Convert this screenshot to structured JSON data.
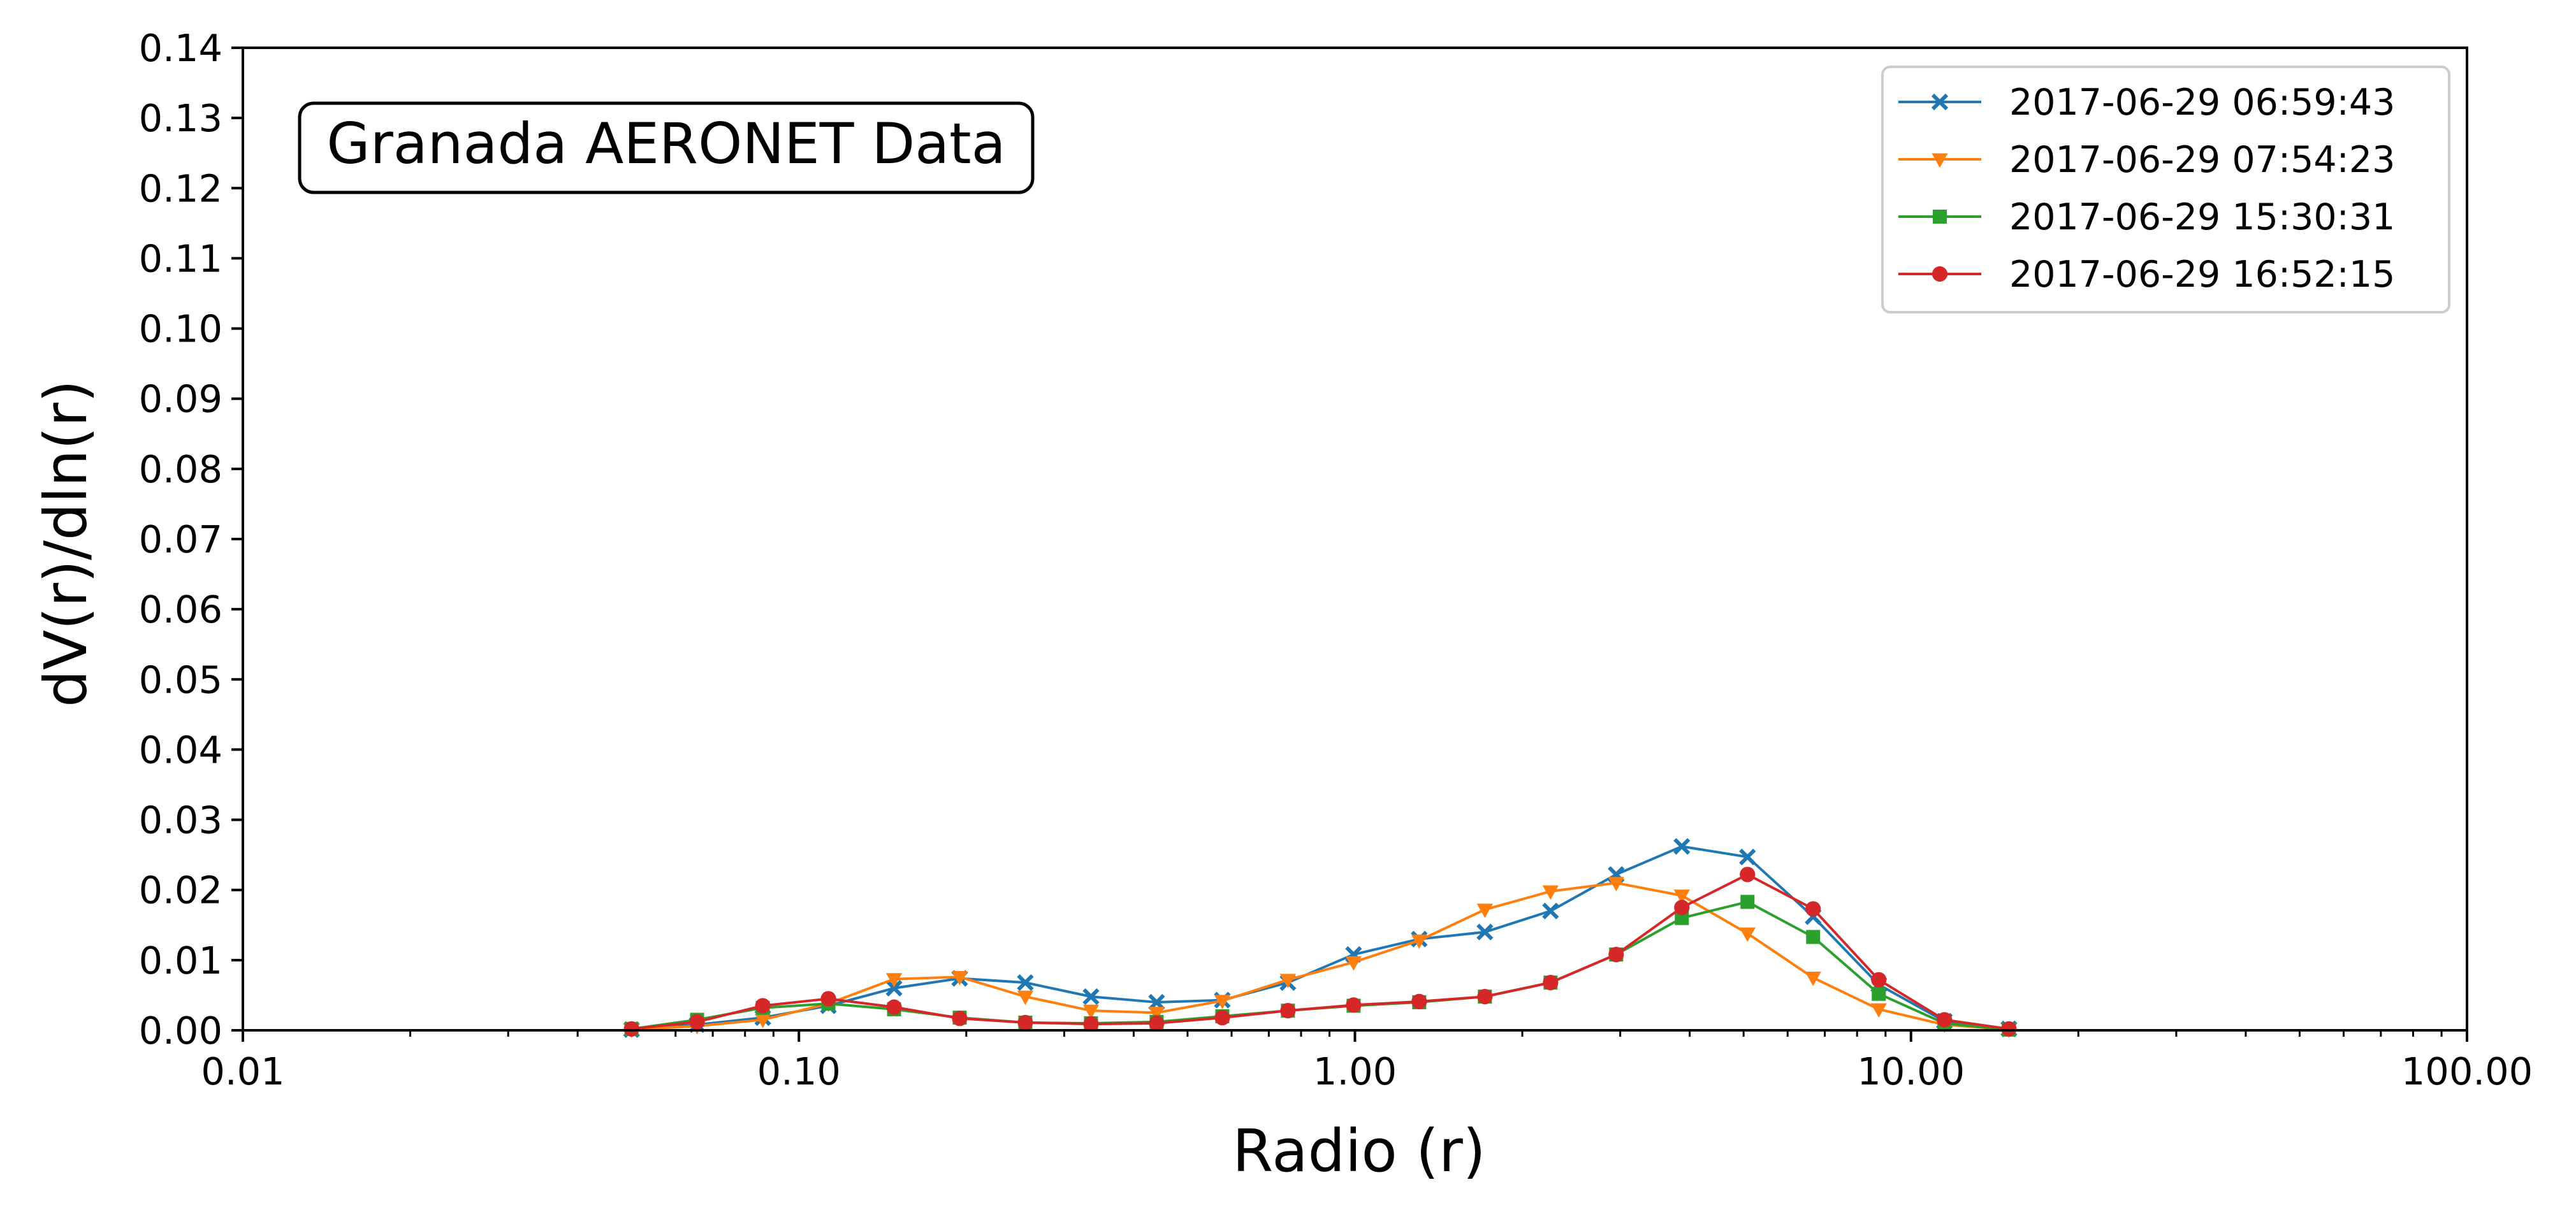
{
  "chart_data": {
    "type": "line",
    "title": "",
    "annotation": "Granada AERONET Data",
    "xlabel": "Radio (r)",
    "ylabel": "dV(r)/dln(r)",
    "xscale": "log",
    "xlim": [
      0.01,
      100
    ],
    "ylim": [
      0,
      0.14
    ],
    "xticks": [
      0.01,
      0.1,
      1,
      10,
      100
    ],
    "xtick_labels": [
      "0.01",
      "0.10",
      "1.00",
      "10.00",
      "100.00"
    ],
    "yticks": [
      0,
      0.01,
      0.02,
      0.03,
      0.04,
      0.05,
      0.06,
      0.07,
      0.08,
      0.09,
      0.1,
      0.11,
      0.12,
      0.13,
      0.14
    ],
    "ytick_labels": [
      "0.00",
      "0.01",
      "0.02",
      "0.03",
      "0.04",
      "0.05",
      "0.06",
      "0.07",
      "0.08",
      "0.09",
      "0.10",
      "0.11",
      "0.12",
      "0.13",
      "0.14"
    ],
    "grid": false,
    "legend_position": "top-right",
    "x": [
      0.05,
      0.0656,
      0.0861,
      0.113,
      0.1483,
      0.1946,
      0.2554,
      0.3352,
      0.4399,
      0.5774,
      0.7577,
      0.9944,
      1.305,
      1.7128,
      2.2479,
      2.9501,
      3.8717,
      5.0813,
      6.6686,
      8.7518,
      11.486,
      15.0
    ],
    "series": [
      {
        "name": "2017-06-29 06:59:43",
        "color": "#1f77b4",
        "marker": "x",
        "values": [
          0.0001,
          0.0008,
          0.0018,
          0.0035,
          0.006,
          0.0074,
          0.0068,
          0.0048,
          0.004,
          0.0043,
          0.0068,
          0.0108,
          0.013,
          0.014,
          0.017,
          0.0222,
          0.0262,
          0.0247,
          0.0162,
          0.0065,
          0.0013,
          0.0002
        ]
      },
      {
        "name": "2017-06-29 07:54:23",
        "color": "#ff7f0e",
        "marker": "triangle-down",
        "values": [
          0.0001,
          0.0006,
          0.0015,
          0.0038,
          0.0073,
          0.0076,
          0.0048,
          0.0028,
          0.0025,
          0.0042,
          0.0072,
          0.0097,
          0.0128,
          0.0172,
          0.0198,
          0.021,
          0.0192,
          0.0138,
          0.0075,
          0.003,
          0.0008,
          0.0001
        ]
      },
      {
        "name": "2017-06-29 15:30:31",
        "color": "#2ca02c",
        "marker": "square",
        "values": [
          0.0002,
          0.0015,
          0.0032,
          0.0038,
          0.003,
          0.0018,
          0.0011,
          0.001,
          0.0012,
          0.002,
          0.0028,
          0.0035,
          0.004,
          0.0048,
          0.0068,
          0.0108,
          0.016,
          0.0183,
          0.0133,
          0.0052,
          0.001,
          0.0001
        ]
      },
      {
        "name": "2017-06-29 16:52:15",
        "color": "#d62728",
        "marker": "circle",
        "values": [
          0.0002,
          0.0012,
          0.0035,
          0.0045,
          0.0033,
          0.0017,
          0.0011,
          0.0009,
          0.001,
          0.0018,
          0.0028,
          0.0036,
          0.0041,
          0.0048,
          0.0068,
          0.0108,
          0.0175,
          0.0222,
          0.0173,
          0.0072,
          0.0015,
          0.0002
        ]
      }
    ]
  }
}
